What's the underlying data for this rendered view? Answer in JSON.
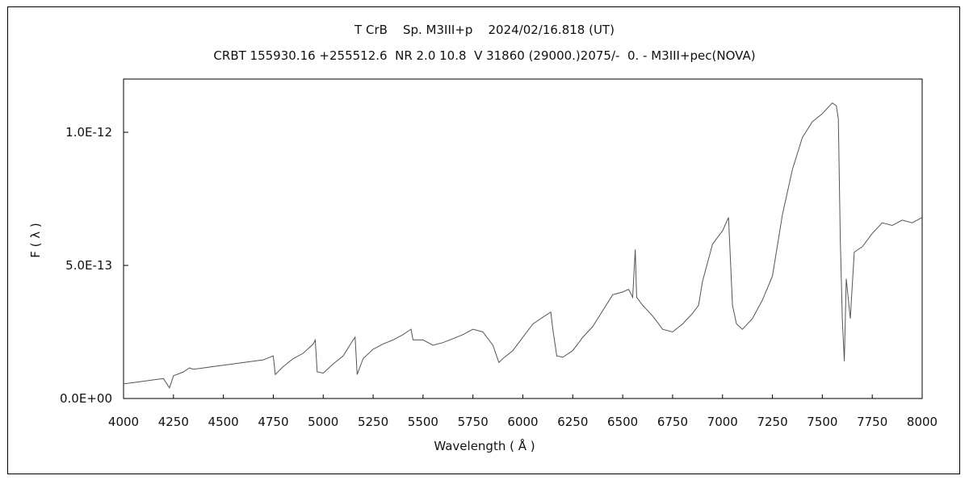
{
  "chart_data": {
    "type": "line",
    "title": "T CrB    Sp. M3III+p    2024/02/16.818 (UT)",
    "subtitle": "CRBT 155930.16 +255512.6  NR 2.0 10.8  V 31860 (29000.)2075/-  0. - M3III+pec(NOVA)",
    "xlabel": "Wavelength ( Å )",
    "ylabel": "F ( λ )",
    "xlim": [
      4000,
      8000
    ],
    "ylim": [
      0,
      1.2e-12
    ],
    "x_ticks": [
      4000,
      4250,
      4500,
      4750,
      5000,
      5250,
      5500,
      5750,
      6000,
      6250,
      6500,
      6750,
      7000,
      7250,
      7500,
      7750,
      8000
    ],
    "x_tick_labels": [
      "4000",
      "4250",
      "4500",
      "4750",
      "5000",
      "5250",
      "5500",
      "5750",
      "6000",
      "6250",
      "6500",
      "6750",
      "7000",
      "7250",
      "7500",
      "7750",
      "8000"
    ],
    "y_ticks": [
      0,
      5e-13,
      1e-12
    ],
    "y_tick_labels": [
      "0.0E+00",
      "5.0E-13",
      "1.0E-12"
    ],
    "grid": false,
    "series": [
      {
        "color": "#555555",
        "x": [
          4000,
          4050,
          4100,
          4150,
          4200,
          4230,
          4250,
          4300,
          4330,
          4350,
          4400,
          4450,
          4500,
          4550,
          4600,
          4650,
          4700,
          4750,
          4760,
          4800,
          4850,
          4900,
          4950,
          4960,
          4970,
          5000,
          5050,
          5100,
          5150,
          5160,
          5170,
          5200,
          5250,
          5300,
          5350,
          5400,
          5440,
          5450,
          5500,
          5550,
          5600,
          5650,
          5700,
          5750,
          5800,
          5850,
          5880,
          5900,
          5950,
          6000,
          6050,
          6100,
          6140,
          6150,
          6170,
          6200,
          6250,
          6300,
          6350,
          6400,
          6450,
          6500,
          6530,
          6550,
          6563,
          6570,
          6600,
          6650,
          6700,
          6750,
          6800,
          6850,
          6880,
          6900,
          6950,
          7000,
          7030,
          7050,
          7070,
          7100,
          7150,
          7200,
          7250,
          7300,
          7350,
          7400,
          7450,
          7500,
          7550,
          7570,
          7580,
          7590,
          7600,
          7610,
          7620,
          7640,
          7660,
          7700,
          7750,
          7800,
          7850,
          7900,
          7950,
          8000
        ],
        "y": [
          5.5e-14,
          6e-14,
          6.5e-14,
          7e-14,
          7.5e-14,
          4e-14,
          8.5e-14,
          1e-13,
          1.15e-13,
          1.1e-13,
          1.15e-13,
          1.2e-13,
          1.25e-13,
          1.3e-13,
          1.35e-13,
          1.4e-13,
          1.45e-13,
          1.6e-13,
          9e-14,
          1.2e-13,
          1.5e-13,
          1.7e-13,
          2.05e-13,
          2.2e-13,
          1e-13,
          9.5e-14,
          1.3e-13,
          1.6e-13,
          2.2e-13,
          2.3e-13,
          9e-14,
          1.5e-13,
          1.85e-13,
          2.05e-13,
          2.2e-13,
          2.4e-13,
          2.6e-13,
          2.2e-13,
          2.2e-13,
          2e-13,
          2.1e-13,
          2.25e-13,
          2.4e-13,
          2.6e-13,
          2.5e-13,
          2e-13,
          1.35e-13,
          1.5e-13,
          1.8e-13,
          2.3e-13,
          2.8e-13,
          3.05e-13,
          3.25e-13,
          2.6e-13,
          1.6e-13,
          1.55e-13,
          1.8e-13,
          2.3e-13,
          2.7e-13,
          3.3e-13,
          3.9e-13,
          4e-13,
          4.1e-13,
          3.8e-13,
          5.6e-13,
          3.8e-13,
          3.5e-13,
          3.1e-13,
          2.6e-13,
          2.5e-13,
          2.8e-13,
          3.2e-13,
          3.5e-13,
          4.4e-13,
          5.8e-13,
          6.3e-13,
          6.8e-13,
          3.5e-13,
          2.8e-13,
          2.6e-13,
          3e-13,
          3.7e-13,
          4.6e-13,
          6.9e-13,
          8.6e-13,
          9.8e-13,
          1.04e-12,
          1.07e-12,
          1.11e-12,
          1.1e-12,
          1.05e-12,
          6e-13,
          3e-13,
          1.4e-13,
          4.5e-13,
          3e-13,
          5.5e-13,
          5.7e-13,
          6.2e-13,
          6.6e-13,
          6.5e-13,
          6.7e-13,
          6.6e-13,
          6.8e-13
        ]
      }
    ]
  }
}
